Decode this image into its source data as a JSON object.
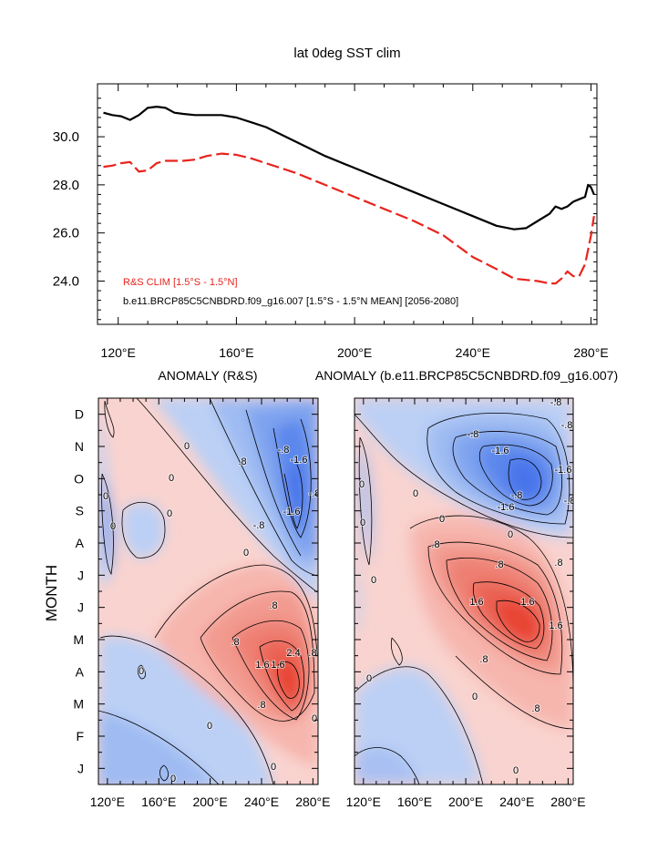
{
  "chart_data": [
    {
      "type": "line",
      "title": "lat 0deg SST clim",
      "xlabel": "",
      "ylabel": "",
      "xlim": [
        113,
        282
      ],
      "ylim": [
        22.2,
        32.2
      ],
      "x_tick_labels": [
        "120°E",
        "160°E",
        "200°E",
        "240°E",
        "280°E"
      ],
      "x_tick_values": [
        120,
        160,
        200,
        240,
        280
      ],
      "y_tick_labels": [
        "24.0",
        "26.0",
        "28.0",
        "30.0"
      ],
      "y_tick_values": [
        24,
        26,
        28,
        30
      ],
      "legend": {
        "position": "bottom-left",
        "rs_label": "R&S CLIM [1.5°S - 1.5°N]",
        "model_label": "b.e11.BRCP85C5CNBDRD.f09_g16.007 [1.5°S - 1.5°N MEAN] [2056-2080]"
      },
      "series": [
        {
          "name": "b.e11.BRCP85C5CNBDRD.f09_g16.007 [1.5°S - 1.5°N MEAN] [2056-2080]",
          "color": "#000000",
          "style": "solid",
          "x": [
            115,
            118,
            121,
            124,
            127,
            130,
            133,
            136,
            139,
            142,
            146,
            150,
            155,
            160,
            165,
            170,
            180,
            190,
            200,
            210,
            220,
            230,
            240,
            248,
            254,
            258,
            262,
            266,
            268,
            270,
            272,
            274,
            276,
            278,
            279,
            280,
            281
          ],
          "y": [
            31.0,
            30.9,
            30.85,
            30.7,
            30.9,
            31.2,
            31.25,
            31.2,
            31.0,
            30.95,
            30.9,
            30.9,
            30.9,
            30.8,
            30.6,
            30.4,
            29.8,
            29.2,
            28.7,
            28.2,
            27.7,
            27.2,
            26.7,
            26.3,
            26.15,
            26.2,
            26.5,
            26.8,
            27.1,
            27.0,
            27.1,
            27.3,
            27.4,
            27.5,
            28.0,
            27.9,
            27.6
          ]
        },
        {
          "name": "R&S CLIM [1.5°S - 1.5°N]",
          "color": "#e8231c",
          "style": "dashed",
          "x": [
            115,
            118,
            121,
            124,
            127,
            130,
            133,
            136,
            139,
            142,
            146,
            150,
            155,
            160,
            165,
            170,
            180,
            190,
            200,
            210,
            220,
            230,
            240,
            248,
            254,
            258,
            262,
            266,
            268,
            270,
            272,
            274,
            276,
            278,
            279,
            280,
            281
          ],
          "y": [
            28.75,
            28.8,
            28.9,
            28.95,
            28.55,
            28.6,
            28.9,
            29.0,
            29.0,
            29.0,
            29.05,
            29.2,
            29.3,
            29.25,
            29.1,
            28.9,
            28.5,
            28.0,
            27.5,
            27.0,
            26.5,
            25.9,
            25.0,
            24.5,
            24.1,
            24.05,
            24.0,
            23.9,
            23.9,
            24.1,
            24.4,
            24.2,
            24.2,
            24.7,
            25.3,
            25.9,
            26.7
          ]
        }
      ]
    },
    {
      "type": "heatmap",
      "subtype": "filled-contour",
      "title": "ANOMALY (R&S)",
      "xlabel": "",
      "ylabel": "MONTH",
      "x_tick_labels": [
        "120°E",
        "160°E",
        "200°E",
        "240°E",
        "280°E"
      ],
      "x_tick_values": [
        120,
        160,
        200,
        240,
        280
      ],
      "y_tick_labels": [
        "J",
        "F",
        "M",
        "A",
        "M",
        "J",
        "J",
        "A",
        "S",
        "O",
        "N",
        "D"
      ],
      "contour_interval": 0.4,
      "contour_labels": [
        "0",
        "0",
        "0",
        "0",
        "0",
        "0",
        "0",
        "0",
        "0",
        ".8",
        ".8",
        ".8",
        "1.6",
        "1.6",
        "2.4",
        "-.8",
        "-.8",
        "-1.6",
        "-1.6",
        "0",
        ".8",
        ".8",
        "-.8",
        "0"
      ],
      "colors": {
        "positive": "#e8402e",
        "negative": "#3f6ae8",
        "zero": "#ffffff"
      }
    },
    {
      "type": "heatmap",
      "subtype": "filled-contour",
      "title": "ANOMALY (b.e11.BRCP85C5CNBDRD.f09_g16.007)",
      "xlabel": "",
      "ylabel": "",
      "x_tick_labels": [
        "120°E",
        "160°E",
        "200°E",
        "240°E",
        "280°E"
      ],
      "x_tick_values": [
        120,
        160,
        200,
        240,
        280
      ],
      "contour_interval": 0.4,
      "contour_labels": [
        "0",
        "0",
        "0",
        "0",
        "0",
        "0",
        ".8",
        ".8",
        "1.6",
        "1.6",
        "1.6",
        ".8",
        ".8",
        ".8",
        "-.8",
        "-.8",
        "-1.6",
        "-1.6",
        "-1.6",
        "-.8",
        "-.8",
        "-.8",
        "0",
        "0",
        "0"
      ],
      "colors": {
        "positive": "#e8402e",
        "negative": "#3f6ae8",
        "zero": "#ffffff"
      }
    }
  ]
}
